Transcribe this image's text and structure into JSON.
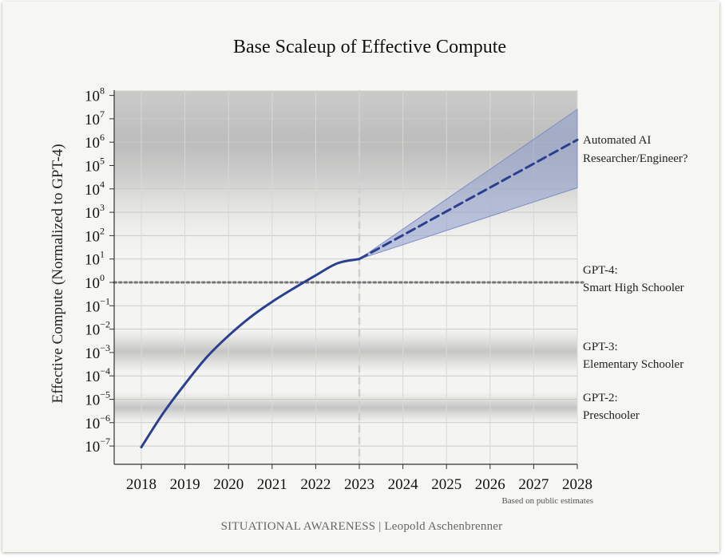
{
  "chart_data": {
    "type": "line",
    "title": "Base Scaleup of Effective Compute",
    "ylabel": "Effective Compute (Normalized to GPT-4)",
    "xlabel": "",
    "x_ticks": [
      "2018",
      "2019",
      "2020",
      "2021",
      "2022",
      "2023",
      "2024",
      "2025",
      "2026",
      "2027",
      "2028"
    ],
    "y_scale": "log10",
    "y_ticks": [
      {
        "base": "10",
        "exp": "8"
      },
      {
        "base": "10",
        "exp": "7"
      },
      {
        "base": "10",
        "exp": "6"
      },
      {
        "base": "10",
        "exp": "5"
      },
      {
        "base": "10",
        "exp": "4"
      },
      {
        "base": "10",
        "exp": "3"
      },
      {
        "base": "10",
        "exp": "2"
      },
      {
        "base": "10",
        "exp": "1"
      },
      {
        "base": "10",
        "exp": "0"
      },
      {
        "base": "10",
        "exp": "−1"
      },
      {
        "base": "10",
        "exp": "−2"
      },
      {
        "base": "10",
        "exp": "−3"
      },
      {
        "base": "10",
        "exp": "−4"
      },
      {
        "base": "10",
        "exp": "−5"
      },
      {
        "base": "10",
        "exp": "−6"
      },
      {
        "base": "10",
        "exp": "−7"
      }
    ],
    "xlim": [
      2017.4,
      2028
    ],
    "ylim_log10": [
      -7.7,
      8.2
    ],
    "grid": true,
    "series": [
      {
        "style": "solid",
        "color": "#2a3f8f",
        "points": [
          [
            2018,
            -7.05
          ],
          [
            2018.5,
            -5.6
          ],
          [
            2019,
            -4.35
          ],
          [
            2019.5,
            -3.2
          ],
          [
            2020,
            -2.28
          ],
          [
            2020.5,
            -1.49
          ],
          [
            2021,
            -0.83
          ],
          [
            2021.5,
            -0.25
          ],
          [
            2022,
            0.3
          ],
          [
            2022.5,
            0.82
          ],
          [
            2023,
            1.0
          ]
        ],
        "note": "y given in log10 of effective compute"
      },
      {
        "style": "dashed",
        "color": "#2a3f8f",
        "points": [
          [
            2023,
            1.0
          ],
          [
            2028,
            6.1
          ]
        ],
        "note": "y given in log10 of effective compute"
      }
    ],
    "uncertainty_band": {
      "color": "#8e9ccc",
      "upper": [
        [
          2023,
          1.0
        ],
        [
          2028,
          7.4
        ]
      ],
      "lower": [
        [
          2023,
          1.0
        ],
        [
          2028,
          4.05
        ]
      ]
    },
    "reference_lines": {
      "horizontal_log10": 0,
      "vertical_x": 2023
    },
    "shaded_bands_log10": [
      {
        "from": 0.8,
        "to": 8.2,
        "peak": 6.1
      },
      {
        "from": -3.85,
        "to": -2.05,
        "peak": -2.95
      },
      {
        "from": -6.0,
        "to": -4.7,
        "peak": -5.35
      }
    ],
    "annotations": [
      {
        "lines": [
          "Automated AI",
          "Researcher/Engineer?"
        ]
      },
      {
        "lines": [
          "GPT-4:",
          "Smart High Schooler"
        ]
      },
      {
        "lines": [
          "GPT-3:",
          "Elementary Schooler"
        ]
      },
      {
        "lines": [
          "GPT-2:",
          "Preschooler"
        ]
      }
    ]
  },
  "note": "Based on public estimates",
  "footer": "SITUATIONAL AWARENESS | Leopold Aschenbrenner"
}
